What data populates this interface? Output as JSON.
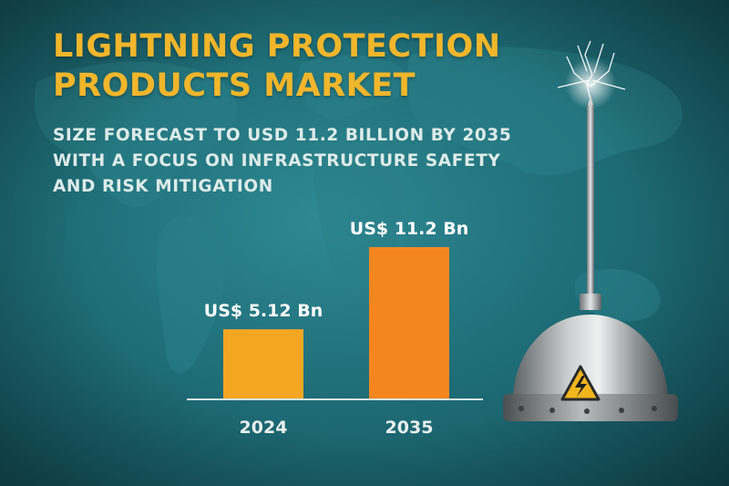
{
  "title_lines": [
    "LIGHTNING PROTECTION",
    "PRODUCTS MARKET"
  ],
  "subtitle_lines": [
    "SIZE FORECAST TO USD 11.2 BILLION BY 2035",
    "WITH A FOCUS ON INFRASTRUCTURE SAFETY",
    "AND RISK MITIGATION"
  ],
  "colors": {
    "title": "#f1b62b",
    "bar_2024": "#f6a623",
    "bar_2035": "#f5861f",
    "background": "#1f6e78",
    "warning_sign": "#f2b51c"
  },
  "icons": [
    "lightning-rod-illustration",
    "high-voltage-warning-icon",
    "world-map-background"
  ],
  "chart_data": {
    "type": "bar",
    "categories": [
      "2024",
      "2035"
    ],
    "values": [
      5.12,
      11.2
    ],
    "value_labels": [
      "US$ 5.12 Bn",
      "US$ 11.2 Bn"
    ],
    "title": "",
    "xlabel": "",
    "ylabel": "",
    "ylim": [
      0,
      11.2
    ],
    "grid": false,
    "legend": "none"
  }
}
